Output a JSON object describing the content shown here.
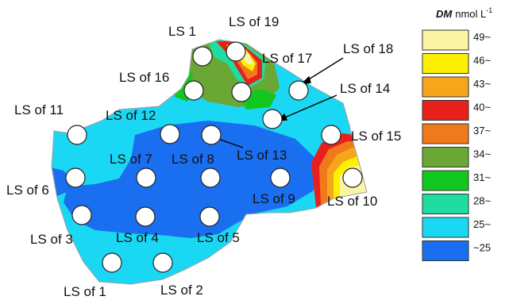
{
  "legend": {
    "title_symbol": "DM",
    "title_unit": "nmol L",
    "title_exponent": "-1",
    "bins": [
      {
        "label": "49~",
        "color": "#fbf4a2"
      },
      {
        "label": "46~",
        "color": "#fdf000"
      },
      {
        "label": "43~",
        "color": "#f7a51a"
      },
      {
        "label": "40~",
        "color": "#e8201c"
      },
      {
        "label": "37~",
        "color": "#f07a1b"
      },
      {
        "label": "34~",
        "color": "#6aa734"
      },
      {
        "label": "31~",
        "color": "#12c71d"
      },
      {
        "label": "28~",
        "color": "#1fdda0"
      },
      {
        "label": "25~",
        "color": "#1ad8f3"
      },
      {
        "label": "~25",
        "color": "#1a6ff0"
      }
    ]
  },
  "sites": [
    {
      "id": "ls-1",
      "label": "LS 1"
    },
    {
      "id": "ls-19",
      "label": "LS of 19"
    },
    {
      "id": "ls-18",
      "label": "LS of 18"
    },
    {
      "id": "ls-17",
      "label": "LS of 17"
    },
    {
      "id": "ls-16",
      "label": "LS of 16"
    },
    {
      "id": "ls-14",
      "label": "LS of 14"
    },
    {
      "id": "ls-12",
      "label": "LS of 12"
    },
    {
      "id": "ls-11",
      "label": "LS of 11"
    },
    {
      "id": "ls-13",
      "label": "LS of 13"
    },
    {
      "id": "ls-15",
      "label": "LS of 15"
    },
    {
      "id": "ls-7",
      "label": "LS of 7"
    },
    {
      "id": "ls-8",
      "label": "LS of 8"
    },
    {
      "id": "ls-6",
      "label": "LS of 6"
    },
    {
      "id": "ls-9",
      "label": "LS of 9"
    },
    {
      "id": "ls-10",
      "label": "LS of 10"
    },
    {
      "id": "ls-3",
      "label": "LS of 3"
    },
    {
      "id": "ls-4",
      "label": "LS of 4"
    },
    {
      "id": "ls-5",
      "label": "LS of 5"
    },
    {
      "id": "ls-1b",
      "label": "LS of 1"
    },
    {
      "id": "ls-2",
      "label": "LS of 2"
    }
  ]
}
